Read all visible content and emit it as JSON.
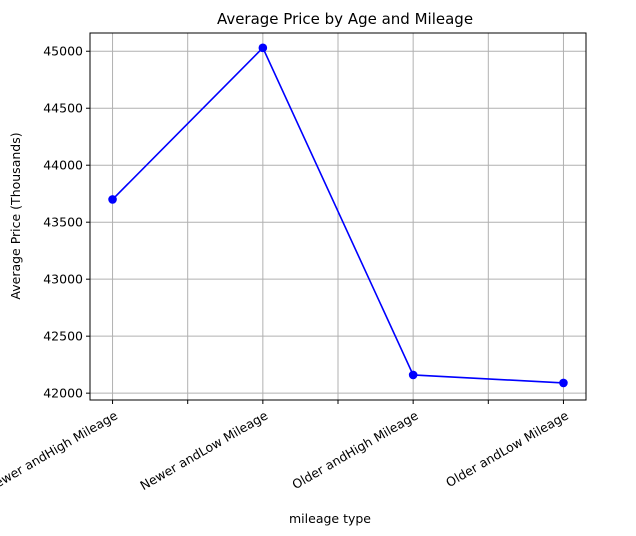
{
  "chart_data": {
    "type": "line",
    "title": "Average Price by Age and Mileage",
    "xlabel": "mileage type",
    "ylabel": "Average Price (Thousands)",
    "categories": [
      "Newer andHigh Mileage",
      "Newer andLow Mileage",
      "Older andHigh Mileage",
      "Older andLow Mileage"
    ],
    "series": [
      {
        "values": [
          43700,
          45030,
          42160,
          42090
        ],
        "color": "#0000ff",
        "marker": "circle"
      }
    ],
    "yticks": [
      42000,
      42500,
      43000,
      43500,
      44000,
      44500,
      45000
    ],
    "ylim": [
      41940,
      45160
    ],
    "xtick_rotation": 30,
    "grid": true,
    "legend": "none"
  }
}
